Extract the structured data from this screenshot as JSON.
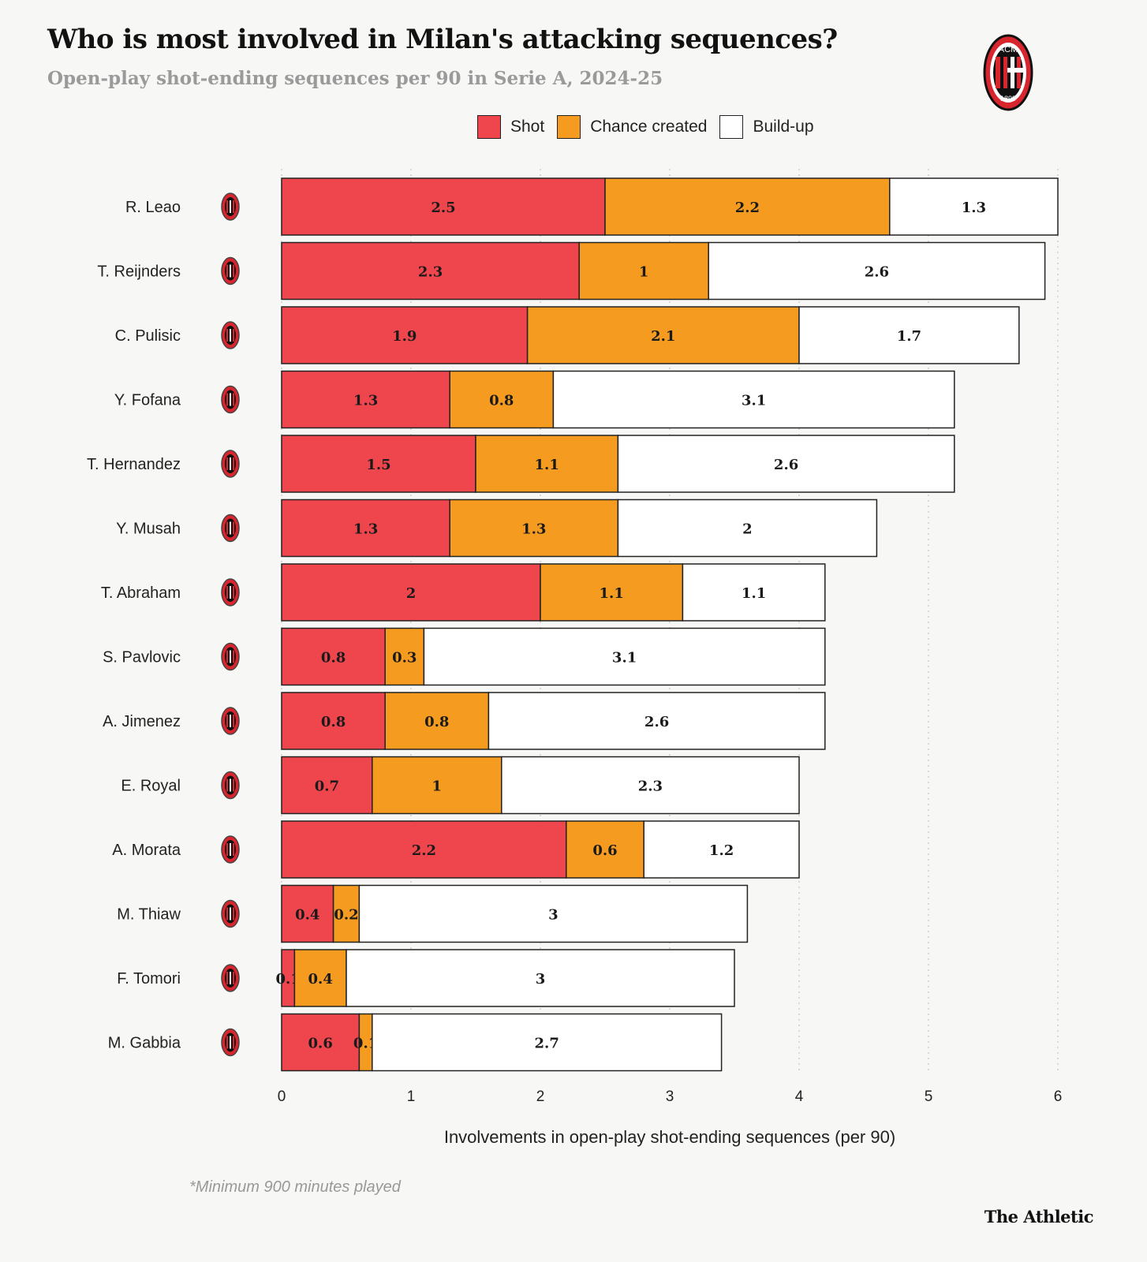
{
  "header": {
    "title": "Who is most involved in Milan's attacking sequences?",
    "subtitle": "Open-play shot-ending sequences per 90 in Serie A, 2024-25"
  },
  "logo": {
    "icon": "ac-milan-crest-icon",
    "top_text": "ACM",
    "bottom_text": "1899"
  },
  "legend": {
    "shot": "Shot",
    "chance": "Chance created",
    "buildup": "Build-up"
  },
  "colors": {
    "shot": "#ef464e",
    "chance": "#f59c20",
    "buildup": "#ffffff",
    "outline": "#222222",
    "grid": "#d0d0d0"
  },
  "chart_data": {
    "type": "bar",
    "orientation": "horizontal",
    "stacked": true,
    "categories": [
      "R. Leao",
      "T. Reijnders",
      "C. Pulisic",
      "Y. Fofana",
      "T. Hernandez",
      "Y. Musah",
      "T. Abraham",
      "S. Pavlovic",
      "A. Jimenez",
      "E. Royal",
      "A. Morata",
      "M. Thiaw",
      "F. Tomori",
      "M. Gabbia"
    ],
    "series": [
      {
        "name": "Shot",
        "values": [
          2.5,
          2.3,
          1.9,
          1.3,
          1.5,
          1.3,
          2,
          0.8,
          0.8,
          0.7,
          2.2,
          0.4,
          0.1,
          0.6
        ]
      },
      {
        "name": "Chance created",
        "values": [
          2.2,
          1,
          2.1,
          0.8,
          1.1,
          1.3,
          1.1,
          0.3,
          0.8,
          1,
          0.6,
          0.2,
          0.4,
          0.1
        ]
      },
      {
        "name": "Build-up",
        "values": [
          1.3,
          2.6,
          1.7,
          3.1,
          2.6,
          2,
          1.1,
          3.1,
          2.6,
          2.3,
          1.2,
          3,
          3,
          2.7
        ]
      }
    ],
    "xlabel": "Involvements in open-play shot-ending sequences (per 90)",
    "xlim": [
      0,
      6
    ],
    "xticks": [
      0,
      1,
      2,
      3,
      4,
      5,
      6
    ],
    "grid": "vertical-dotted",
    "legend_position": "top"
  },
  "footnote": "*Minimum 900 minutes played",
  "brand": "The Athletic"
}
